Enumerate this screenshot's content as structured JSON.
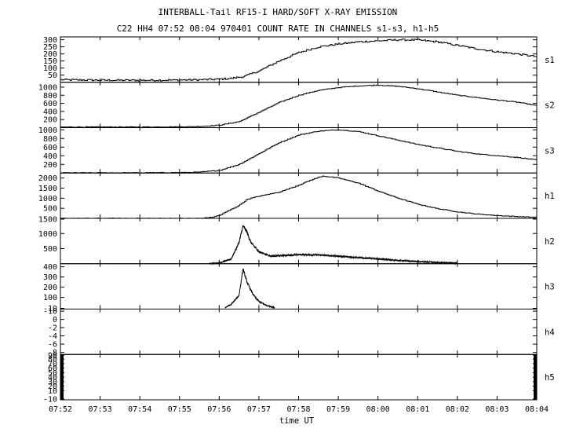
{
  "chart_data": {
    "type": "line",
    "title": "INTERBALL-Tail RF15-I HARD/SOFT X-RAY EMISSION",
    "subtitle": "C22 HH4 07:52 08:04 970401  COUNT RATE IN CHANNELS s1-s3, h1-h5",
    "xlabel": "time UT",
    "x_ticks": [
      "07:52",
      "07:53",
      "07:54",
      "07:55",
      "07:56",
      "07:57",
      "07:58",
      "07:59",
      "08:00",
      "08:01",
      "08:02",
      "08:03",
      "08:04"
    ],
    "x_unit": "minutes after 07:52",
    "xlim": [
      0,
      12
    ],
    "panels": [
      {
        "name": "s1",
        "ylim": [
          0,
          320
        ],
        "yticks": [
          "300",
          "250",
          "200",
          "150",
          "100",
          "50"
        ],
        "tick_values": [
          300,
          250,
          200,
          150,
          100,
          50
        ],
        "series": {
          "style": "step",
          "noise": 6,
          "x": [
            0,
            1,
            2,
            3,
            3.5,
            4,
            4.3,
            4.6,
            5,
            5.5,
            6,
            6.5,
            7,
            7.5,
            8,
            8.5,
            9,
            9.5,
            10,
            10.5,
            11,
            11.5,
            12
          ],
          "y": [
            18,
            15,
            14,
            16,
            18,
            22,
            28,
            40,
            80,
            150,
            210,
            250,
            270,
            285,
            292,
            300,
            298,
            285,
            260,
            235,
            215,
            200,
            180
          ]
        }
      },
      {
        "name": "s2",
        "ylim": [
          0,
          1120
        ],
        "yticks": [
          "1000",
          "800",
          "600",
          "400",
          "200"
        ],
        "tick_values": [
          1000,
          800,
          600,
          400,
          200
        ],
        "series": {
          "style": "step",
          "noise": 8,
          "x": [
            0,
            2,
            3,
            3.5,
            4,
            4.5,
            5,
            5.5,
            6,
            6.5,
            7,
            7.5,
            8,
            8.5,
            9,
            9.5,
            10,
            10.5,
            11,
            11.5,
            12
          ],
          "y": [
            15,
            15,
            20,
            30,
            60,
            150,
            380,
            620,
            800,
            920,
            990,
            1030,
            1050,
            1020,
            960,
            880,
            800,
            740,
            680,
            630,
            540
          ]
        }
      },
      {
        "name": "s3",
        "ylim": [
          0,
          1050
        ],
        "yticks": [
          "1000",
          "800",
          "600",
          "400",
          "200"
        ],
        "tick_values": [
          1000,
          800,
          600,
          400,
          200
        ],
        "series": {
          "style": "step",
          "noise": 8,
          "x": [
            0,
            2,
            3,
            3.5,
            4,
            4.5,
            5,
            5.5,
            6,
            6.5,
            7,
            7.5,
            8,
            8.5,
            9,
            9.5,
            10,
            10.5,
            11,
            11.5,
            12
          ],
          "y": [
            5,
            5,
            10,
            20,
            60,
            200,
            450,
            700,
            880,
            970,
            1000,
            960,
            860,
            760,
            660,
            580,
            500,
            440,
            400,
            360,
            300
          ]
        }
      },
      {
        "name": "h1",
        "ylim": [
          0,
          2250
        ],
        "yticks": [
          "2000",
          "1500",
          "1000",
          "500"
        ],
        "tick_values": [
          2000,
          1500,
          1000,
          500
        ],
        "series": {
          "style": "step",
          "noise": 15,
          "x": [
            0,
            3.5,
            3.8,
            4,
            4.2,
            4.5,
            4.7,
            5,
            5.5,
            6,
            6.3,
            6.6,
            7,
            7.5,
            8,
            8.5,
            9,
            9.5,
            10,
            10.5,
            11,
            11.5,
            12
          ],
          "y": [
            0,
            0,
            50,
            150,
            350,
            650,
            950,
            1100,
            1300,
            1650,
            1900,
            2100,
            2000,
            1750,
            1350,
            1000,
            700,
            480,
            320,
            210,
            140,
            90,
            50
          ]
        }
      },
      {
        "name": "h2",
        "ylim": [
          0,
          1500
        ],
        "yticks": [
          "1500",
          "1000",
          "500"
        ],
        "tick_values": [
          1500,
          1000,
          500
        ],
        "series": {
          "style": "noisy",
          "noise": 45,
          "start": 3.75,
          "end": 10.0,
          "x": [
            3.75,
            4.0,
            4.3,
            4.5,
            4.6,
            4.7,
            4.8,
            5.0,
            5.3,
            5.6,
            6.0,
            6.5,
            7.0,
            7.5,
            8.0,
            8.5,
            9.0,
            9.5,
            10.0
          ],
          "y": [
            0,
            30,
            150,
            700,
            1250,
            1050,
            700,
            400,
            250,
            270,
            300,
            290,
            250,
            200,
            160,
            110,
            70,
            40,
            20
          ]
        }
      },
      {
        "name": "h3",
        "ylim": [
          -15,
          430
        ],
        "yticks": [
          "400",
          "300",
          "200",
          "100",
          "-10"
        ],
        "tick_values": [
          400,
          300,
          200,
          100,
          -10
        ],
        "series": {
          "style": "noisy",
          "noise": 12,
          "start": 4.15,
          "end": 5.4,
          "x": [
            4.15,
            4.3,
            4.5,
            4.6,
            4.7,
            4.85,
            5.0,
            5.2,
            5.4
          ],
          "y": [
            0,
            30,
            120,
            380,
            250,
            130,
            60,
            20,
            0
          ]
        }
      },
      {
        "name": "h4",
        "ylim": [
          -10.5,
          0.5
        ],
        "yticks": [
          "-10",
          "0",
          "-2",
          "-4",
          "-6",
          "-8"
        ],
        "tick_values": [
          0,
          -2,
          -4,
          -6,
          -8,
          -10
        ],
        "series": null
      },
      {
        "name": "h5",
        "ylim": [
          -10,
          90
        ],
        "yticks": [
          "-10",
          "10",
          "20",
          "30",
          "40",
          "50",
          "60",
          "70",
          "80",
          "90"
        ],
        "tick_values": [
          -10,
          10,
          20,
          30,
          40,
          50,
          60,
          70,
          80,
          90
        ],
        "series": null,
        "edge_bars": true
      }
    ],
    "grid": false,
    "colors": {
      "line": "#000000",
      "background": "#ffffff"
    }
  }
}
